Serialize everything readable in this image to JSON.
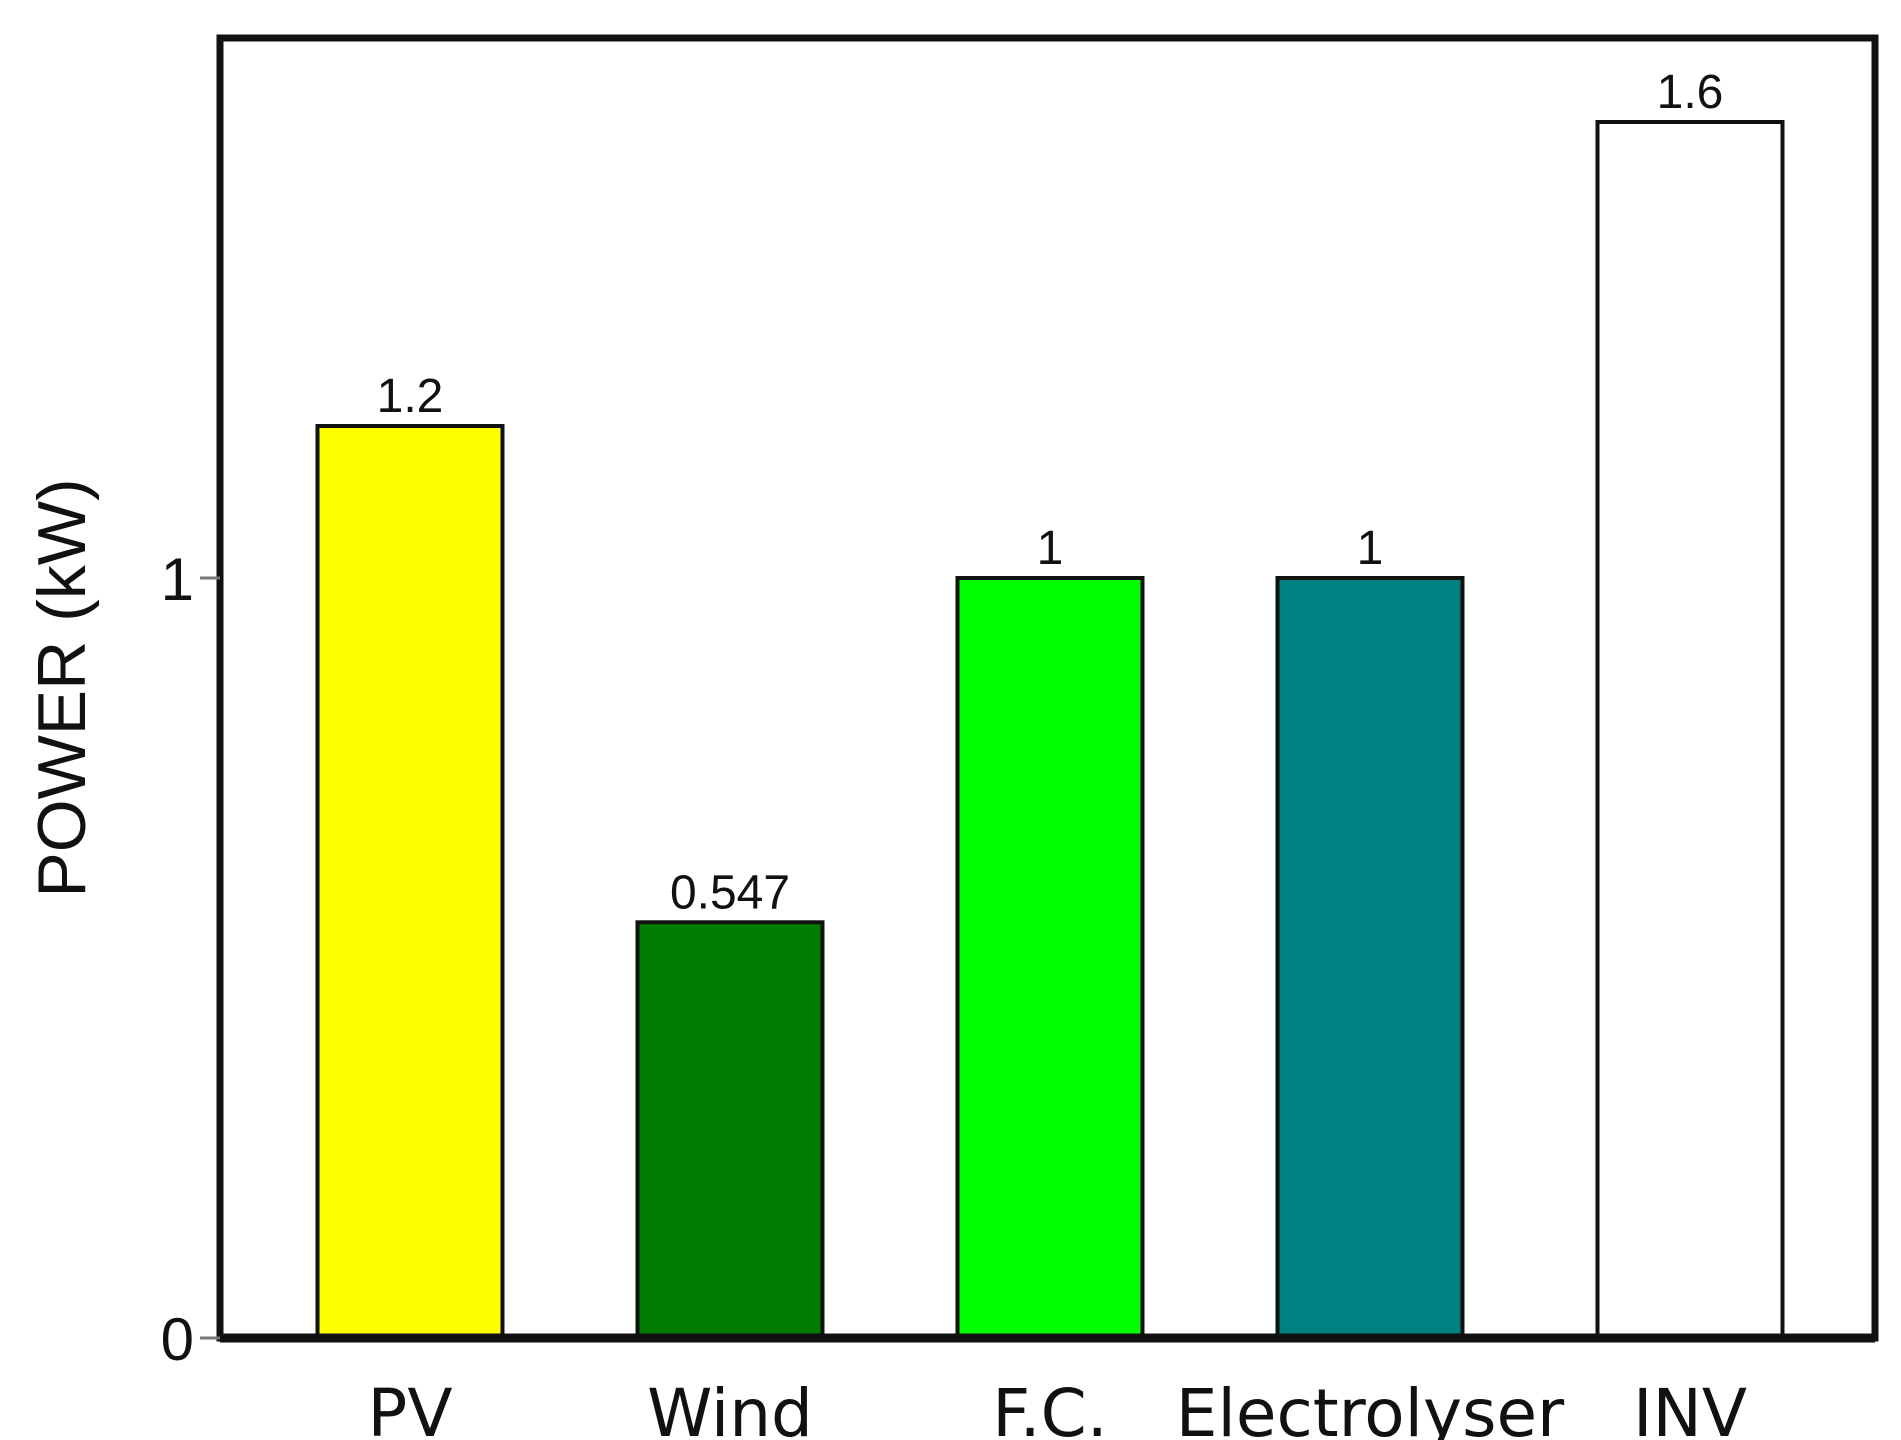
{
  "chart_data": {
    "type": "bar",
    "title": "",
    "xlabel": "",
    "ylabel": "POWER (kW)",
    "categories": [
      "PV",
      "Wind",
      "F.C.",
      "Electrolyser",
      "INV"
    ],
    "values": [
      1.2,
      0.547,
      1,
      1,
      1.6
    ],
    "data_labels": [
      "1.2",
      "0.547",
      "1",
      "1",
      "1.6"
    ],
    "bar_colors": [
      "#ffff00",
      "#007d00",
      "#00ff00",
      "#008080",
      "#ffffff"
    ],
    "yticks": [
      0,
      1
    ],
    "ytick_labels": [
      "0",
      "1"
    ],
    "ylim": [
      0,
      1.75
    ],
    "grid": false,
    "legend": "none"
  }
}
